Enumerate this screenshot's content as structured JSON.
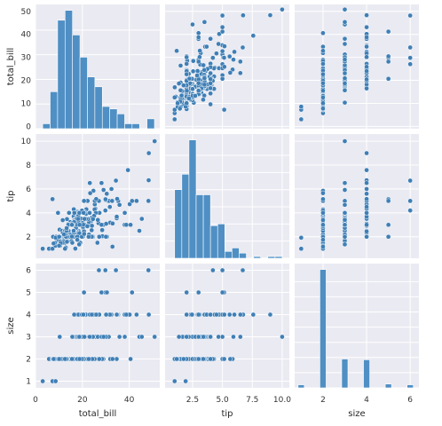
{
  "chart_data": {
    "type": "scatter",
    "subtype": "pairplot",
    "style": "seaborn-darkgrid",
    "colors": {
      "background": "#eaeaf2",
      "grid": "#ffffff",
      "point": "#3f7fb6",
      "point_edge": "#ffffff",
      "bar": "#4f8fc4"
    },
    "variables": [
      "total_bill",
      "tip",
      "size"
    ],
    "axes": {
      "total_bill": {
        "range": [
          0,
          53
        ],
        "ticks": [
          0,
          20,
          40
        ],
        "tick_labels": [
          "0",
          "20",
          "40"
        ],
        "label": "total_bill"
      },
      "tip": {
        "range": [
          0.2,
          10.6
        ],
        "ticks": [
          2.5,
          5.0,
          7.5,
          10.0
        ],
        "tick_labels": [
          "2.5",
          "5.0",
          "7.5",
          "10.0"
        ],
        "label": "tip"
      },
      "size": {
        "range": [
          0.7,
          6.4
        ],
        "ticks": [
          2,
          4,
          6
        ],
        "tick_labels": [
          "2",
          "4",
          "6"
        ],
        "label": "size"
      }
    },
    "y_axes": {
      "total_bill": {
        "range": [
          -1,
          53
        ],
        "ticks": [
          0,
          10,
          20,
          30,
          40,
          50
        ],
        "tick_labels": [
          "0",
          "10",
          "20",
          "30",
          "40",
          "50"
        ],
        "label": "total_bill"
      },
      "tip": {
        "range": [
          0.2,
          10.6
        ],
        "ticks": [
          2,
          4,
          6,
          8,
          10
        ],
        "tick_labels": [
          "2",
          "4",
          "6",
          "8",
          "10"
        ],
        "label": "tip"
      },
      "size": {
        "range": [
          0.7,
          6.3
        ],
        "ticks": [
          1,
          2,
          3,
          4,
          5,
          6
        ],
        "tick_labels": [
          "1",
          "2",
          "3",
          "4",
          "5",
          "6"
        ],
        "label": "size"
      }
    },
    "histograms": {
      "total_bill": {
        "bin_edges": [
          3.07,
          6.25,
          9.43,
          12.6,
          15.78,
          18.96,
          22.14,
          25.32,
          28.49,
          31.67,
          34.85,
          38.03,
          41.2,
          44.38,
          47.56,
          50.74
        ],
        "counts": [
          2,
          15,
          44,
          48,
          38,
          29,
          21,
          17,
          9,
          8,
          6,
          2,
          2,
          0,
          4
        ]
      },
      "tip": {
        "bin_edges": [
          1.0,
          1.6,
          2.2,
          2.8,
          3.4,
          4.0,
          4.6,
          5.2,
          5.8,
          6.4,
          7.0,
          7.6,
          8.2,
          8.8,
          9.4,
          10.0
        ],
        "counts": [
          40,
          49,
          69,
          37,
          37,
          19,
          20,
          4,
          6,
          3,
          0,
          1,
          0,
          1,
          1
        ]
      },
      "size": {
        "bins": [
          1,
          2,
          3,
          4,
          5,
          6
        ],
        "counts": [
          4,
          156,
          38,
          37,
          5,
          4
        ]
      }
    },
    "observations": {
      "total_bill": [
        16.99,
        10.34,
        21.01,
        23.68,
        24.59,
        25.29,
        8.77,
        26.88,
        15.04,
        14.78,
        10.27,
        35.26,
        15.42,
        18.43,
        14.83,
        21.58,
        10.33,
        16.29,
        16.97,
        20.65,
        17.92,
        20.29,
        15.77,
        39.42,
        19.82,
        17.81,
        13.37,
        12.69,
        21.7,
        19.65,
        9.55,
        18.35,
        15.06,
        20.69,
        17.78,
        24.06,
        16.31,
        16.93,
        18.69,
        31.27,
        16.04,
        17.46,
        13.94,
        9.68,
        30.4,
        18.29,
        22.23,
        32.4,
        28.55,
        18.04,
        12.54,
        10.29,
        34.81,
        9.94,
        25.56,
        19.49,
        38.01,
        26.41,
        11.24,
        48.27,
        20.29,
        13.81,
        11.02,
        18.29,
        17.59,
        20.08,
        16.45,
        3.07,
        20.23,
        15.01,
        12.02,
        17.07,
        26.86,
        25.28,
        14.73,
        10.51,
        17.92,
        27.2,
        22.76,
        17.29,
        19.44,
        16.66,
        10.07,
        32.68,
        15.98,
        34.83,
        13.03,
        18.28,
        24.71,
        21.16,
        28.97,
        22.49,
        5.75,
        16.32,
        22.75,
        40.17,
        27.28,
        12.03,
        21.01,
        12.46,
        11.35,
        15.38,
        44.3,
        22.42,
        20.92,
        15.36,
        20.49,
        25.21,
        18.24,
        14.31,
        14.0,
        7.25,
        38.07,
        23.95,
        25.71,
        17.31,
        29.93,
        10.65,
        12.43,
        24.08,
        11.69,
        13.42,
        14.26,
        15.95,
        12.48,
        29.8,
        8.52,
        14.52,
        11.38,
        22.82,
        19.08,
        20.27,
        11.17,
        12.26,
        18.26,
        8.51,
        10.33,
        14.15,
        16.0,
        13.16,
        17.47,
        34.3,
        41.19,
        27.05,
        16.43,
        8.35,
        18.64,
        11.87,
        9.78,
        7.51,
        14.07,
        13.13,
        17.26,
        24.55,
        19.77,
        29.85,
        48.17,
        25.0,
        13.39,
        16.49,
        21.5,
        12.66,
        16.21,
        13.81,
        17.51,
        24.52,
        20.76,
        31.71,
        10.59,
        10.63,
        50.81,
        15.81,
        7.25,
        31.85,
        16.82,
        32.9,
        17.89,
        14.48,
        9.6,
        34.63,
        34.65,
        23.33,
        45.35,
        23.17,
        40.55,
        20.69,
        20.9,
        30.46,
        18.15,
        23.1,
        15.69,
        19.81,
        28.44,
        15.48,
        16.58,
        7.56,
        10.34,
        43.11,
        13.0,
        13.51,
        18.71,
        12.74,
        13.0,
        16.4,
        20.53,
        16.47,
        26.59,
        38.73,
        24.27,
        12.76,
        30.06,
        25.89,
        48.33,
        13.27,
        28.17,
        12.9,
        28.15,
        11.59,
        7.74,
        30.14,
        12.16,
        13.42,
        8.58,
        15.98,
        13.42,
        16.27,
        10.09,
        20.45,
        13.28,
        22.12,
        24.01,
        15.69,
        11.61,
        10.77,
        15.53,
        10.07,
        12.6,
        32.83,
        35.83,
        29.03,
        27.18,
        22.67,
        17.82,
        18.78
      ],
      "tip": [
        1.01,
        1.66,
        3.5,
        3.31,
        3.61,
        4.71,
        2.0,
        3.12,
        1.96,
        3.23,
        1.71,
        5.0,
        1.57,
        3.0,
        3.02,
        3.92,
        1.67,
        3.71,
        3.5,
        3.35,
        4.08,
        2.75,
        2.23,
        7.58,
        3.18,
        2.34,
        2.0,
        2.0,
        4.3,
        3.0,
        1.45,
        2.5,
        3.0,
        2.45,
        3.27,
        3.6,
        2.0,
        3.07,
        2.31,
        5.0,
        2.24,
        2.54,
        3.06,
        1.32,
        5.6,
        3.0,
        5.0,
        6.0,
        2.05,
        3.0,
        2.5,
        2.6,
        5.2,
        1.56,
        4.34,
        3.51,
        3.0,
        1.5,
        1.76,
        6.73,
        3.21,
        2.0,
        1.98,
        3.76,
        2.64,
        3.15,
        2.47,
        1.0,
        2.01,
        2.09,
        1.97,
        3.0,
        3.14,
        5.0,
        2.2,
        1.25,
        3.08,
        4.0,
        3.0,
        2.71,
        3.0,
        3.4,
        1.83,
        5.0,
        2.03,
        5.17,
        2.0,
        4.0,
        5.85,
        3.0,
        3.0,
        3.5,
        1.0,
        4.3,
        3.25,
        4.73,
        4.0,
        1.5,
        3.0,
        1.5,
        2.5,
        3.0,
        2.5,
        3.48,
        4.08,
        1.64,
        4.06,
        4.29,
        3.76,
        4.0,
        3.0,
        1.0,
        4.0,
        2.55,
        4.0,
        3.5,
        5.07,
        1.5,
        1.8,
        2.92,
        2.31,
        1.68,
        2.5,
        2.0,
        2.52,
        4.2,
        1.48,
        2.0,
        2.0,
        2.18,
        1.5,
        2.83,
        1.5,
        2.0,
        3.25,
        1.25,
        2.0,
        2.0,
        2.0,
        2.75,
        3.5,
        6.7,
        5.0,
        5.0,
        2.3,
        1.5,
        1.36,
        1.63,
        1.73,
        2.0,
        2.5,
        2.0,
        2.74,
        2.0,
        2.0,
        5.14,
        5.0,
        3.75,
        2.61,
        2.0,
        3.5,
        2.5,
        2.0,
        2.0,
        3.0,
        3.48,
        2.24,
        4.5,
        1.61,
        2.0,
        10.0,
        3.16,
        5.15,
        3.18,
        4.0,
        3.11,
        2.0,
        2.0,
        4.0,
        3.55,
        3.68,
        5.65,
        3.5,
        6.5,
        3.0,
        5.0,
        3.5,
        2.0,
        3.5,
        4.0,
        1.5,
        4.19,
        2.56,
        2.02,
        4.0,
        1.44,
        2.0,
        5.0,
        2.0,
        2.0,
        4.0,
        2.01,
        2.0,
        2.5,
        4.0,
        3.23,
        3.41,
        3.0,
        2.03,
        2.23,
        2.0,
        5.16,
        9.0,
        2.5,
        6.5,
        1.1,
        3.0,
        1.5,
        1.44,
        3.09,
        2.2,
        3.48,
        1.92,
        3.0,
        1.58,
        2.5,
        2.0,
        3.0,
        2.72,
        2.88,
        2.0,
        3.0,
        3.39,
        1.47,
        3.0,
        1.25,
        1.0,
        1.17,
        4.67,
        5.92,
        2.0,
        2.0,
        1.75,
        3.0
      ],
      "size": [
        2,
        3,
        3,
        2,
        4,
        4,
        2,
        4,
        2,
        2,
        2,
        4,
        2,
        4,
        2,
        2,
        3,
        3,
        3,
        3,
        2,
        2,
        2,
        4,
        2,
        4,
        2,
        2,
        2,
        2,
        2,
        4,
        2,
        4,
        2,
        3,
        3,
        3,
        3,
        3,
        3,
        2,
        2,
        2,
        4,
        2,
        2,
        4,
        3,
        2,
        2,
        2,
        4,
        2,
        4,
        2,
        4,
        2,
        2,
        4,
        2,
        2,
        2,
        4,
        3,
        3,
        2,
        1,
        2,
        2,
        2,
        3,
        2,
        2,
        2,
        2,
        2,
        4,
        2,
        2,
        2,
        2,
        2,
        2,
        2,
        4,
        2,
        2,
        2,
        2,
        2,
        2,
        2,
        2,
        2,
        4,
        2,
        2,
        2,
        2,
        2,
        2,
        3,
        2,
        2,
        2,
        2,
        2,
        2,
        2,
        2,
        1,
        3,
        2,
        3,
        2,
        4,
        2,
        2,
        4,
        2,
        2,
        2,
        2,
        2,
        6,
        2,
        2,
        2,
        3,
        2,
        2,
        2,
        2,
        2,
        2,
        2,
        2,
        2,
        2,
        2,
        6,
        5,
        6,
        2,
        2,
        3,
        2,
        2,
        2,
        2,
        2,
        3,
        4,
        4,
        5,
        6,
        4,
        2,
        4,
        4,
        2,
        3,
        2,
        2,
        3,
        2,
        4,
        2,
        2,
        3,
        2,
        2,
        2,
        2,
        2,
        2,
        2,
        2,
        2,
        4,
        2,
        3,
        4,
        2,
        5,
        3,
        5,
        3,
        3,
        2,
        2,
        2,
        2,
        2,
        2,
        2,
        4,
        2,
        2,
        3,
        2,
        2,
        2,
        4,
        3,
        3,
        4,
        2,
        2,
        3,
        4,
        4,
        2,
        3,
        2,
        5,
        2,
        2,
        4,
        2,
        2,
        1,
        3,
        2,
        2,
        2,
        4,
        2,
        2,
        4,
        3,
        2,
        2,
        2,
        2,
        2,
        2,
        3,
        3,
        2,
        2,
        2,
        2
      ]
    }
  }
}
